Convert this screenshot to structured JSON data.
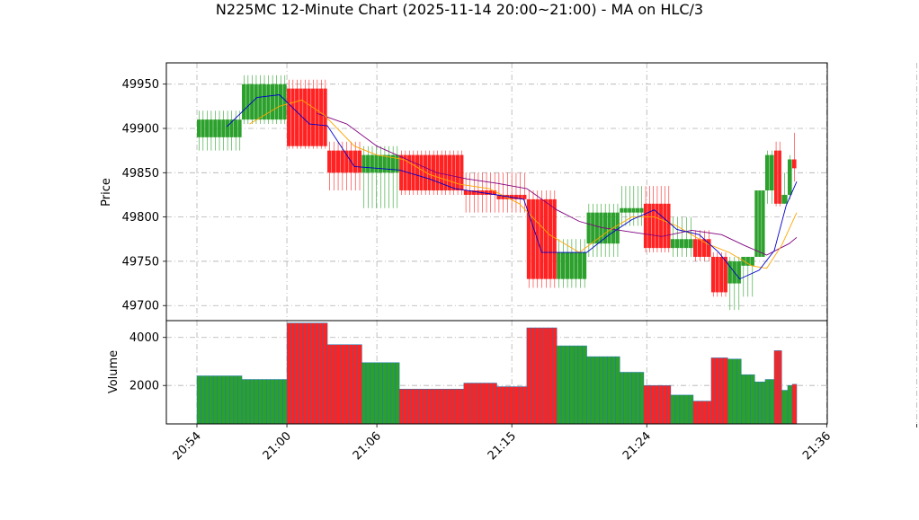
{
  "chart_data": {
    "type": "candlestick",
    "title": "N225MC 12-Minute Chart (2025-11-14 20:00~21:00) - MA on HLC/3",
    "ylabel_price": "Price",
    "ylabel_volume": "Volume",
    "price_ylim": [
      49683,
      49974
    ],
    "price_ticks": [
      49700,
      49750,
      49800,
      49850,
      49900,
      49950
    ],
    "volume_ylim": [
      400,
      4700
    ],
    "volume_ticks": [
      2000,
      4000
    ],
    "grid": true,
    "x_ticks": [
      {
        "t": 0,
        "label": "20:54"
      },
      {
        "t": 6,
        "label": "21:00"
      },
      {
        "t": 12,
        "label": "21:06"
      },
      {
        "t": 21,
        "label": "21:15"
      },
      {
        "t": 30,
        "label": "21:24"
      },
      {
        "t": 42,
        "label": "21:36"
      },
      {
        "t": 48,
        "label": ""
      }
    ],
    "colors": {
      "up": "#2ca02c",
      "down": "#ff2222",
      "ma_fast": "#0000cc",
      "ma_slow": "#ffa500",
      "ma_long": "#800080",
      "vol_edge": "#1f77b4"
    },
    "candles": [
      {
        "t0": 0,
        "t1": 3,
        "o": 49890,
        "h": 49920,
        "l": 49875,
        "c": 49910,
        "v": 2400
      },
      {
        "t0": 3,
        "t1": 6,
        "o": 49910,
        "h": 49960,
        "l": 49905,
        "c": 49950,
        "v": 2250
      },
      {
        "t0": 6,
        "t1": 8.7,
        "o": 49945,
        "h": 49955,
        "l": 49877,
        "c": 49880,
        "v": 4600
      },
      {
        "t0": 8.7,
        "t1": 11,
        "o": 49875,
        "h": 49885,
        "l": 49830,
        "c": 49850,
        "v": 3700
      },
      {
        "t0": 11,
        "t1": 13.5,
        "o": 49850,
        "h": 49880,
        "l": 49810,
        "c": 49870,
        "v": 2950
      },
      {
        "t0": 13.5,
        "t1": 17.8,
        "o": 49870,
        "h": 49875,
        "l": 49825,
        "c": 49830,
        "v": 1850
      },
      {
        "t0": 17.8,
        "t1": 20,
        "o": 49830,
        "h": 49850,
        "l": 49805,
        "c": 49825,
        "v": 2100
      },
      {
        "t0": 20,
        "t1": 22,
        "o": 49825,
        "h": 49850,
        "l": 49805,
        "c": 49820,
        "v": 1950
      },
      {
        "t0": 22,
        "t1": 24,
        "o": 49820,
        "h": 49830,
        "l": 49720,
        "c": 49730,
        "v": 4400
      },
      {
        "t0": 24,
        "t1": 26,
        "o": 49730,
        "h": 49775,
        "l": 49720,
        "c": 49760,
        "v": 3650
      },
      {
        "t0": 26,
        "t1": 28.2,
        "o": 49770,
        "h": 49815,
        "l": 49755,
        "c": 49805,
        "v": 3200
      },
      {
        "t0": 28.2,
        "t1": 29.8,
        "o": 49805,
        "h": 49835,
        "l": 49790,
        "c": 49810,
        "v": 2550
      },
      {
        "t0": 29.8,
        "t1": 31.6,
        "o": 49815,
        "h": 49835,
        "l": 49760,
        "c": 49765,
        "v": 2000
      },
      {
        "t0": 31.6,
        "t1": 33.1,
        "o": 49765,
        "h": 49800,
        "l": 49755,
        "c": 49775,
        "v": 1600
      },
      {
        "t0": 33.1,
        "t1": 34.3,
        "o": 49775,
        "h": 49785,
        "l": 49750,
        "c": 49755,
        "v": 1350
      },
      {
        "t0": 34.3,
        "t1": 35.4,
        "o": 49755,
        "h": 49760,
        "l": 49710,
        "c": 49715,
        "v": 3150
      },
      {
        "t0": 35.4,
        "t1": 36.3,
        "o": 49725,
        "h": 49755,
        "l": 49695,
        "c": 49750,
        "v": 3100
      },
      {
        "t0": 36.3,
        "t1": 37.2,
        "o": 49745,
        "h": 49755,
        "l": 49710,
        "c": 49755,
        "v": 2450
      },
      {
        "t0": 37.2,
        "t1": 37.9,
        "o": 49755,
        "h": 49830,
        "l": 49755,
        "c": 49830,
        "v": 2150
      },
      {
        "t0": 37.9,
        "t1": 38.5,
        "o": 49830,
        "h": 49875,
        "l": 49815,
        "c": 49870,
        "v": 2250
      },
      {
        "t0": 38.5,
        "t1": 39.0,
        "o": 49875,
        "h": 49885,
        "l": 49812,
        "c": 49815,
        "v": 3450
      },
      {
        "t0": 39.0,
        "t1": 39.4,
        "o": 49815,
        "h": 49850,
        "l": 49815,
        "c": 49825,
        "v": 1800
      },
      {
        "t0": 39.4,
        "t1": 39.7,
        "o": 49825,
        "h": 49870,
        "l": 49820,
        "c": 49865,
        "v": 2000
      },
      {
        "t0": 39.7,
        "t1": 40.0,
        "o": 49865,
        "h": 49895,
        "l": 49840,
        "c": 49855,
        "v": 2050
      }
    ],
    "ma_fast": [
      [
        2,
        49902
      ],
      [
        4,
        49935
      ],
      [
        5.5,
        49938
      ],
      [
        7.5,
        49905
      ],
      [
        8.7,
        49903
      ],
      [
        10.5,
        49857
      ],
      [
        13.5,
        49853
      ],
      [
        15.5,
        49843
      ],
      [
        17.2,
        49832
      ],
      [
        20,
        49825
      ],
      [
        21.8,
        49820
      ],
      [
        23,
        49760
      ],
      [
        26,
        49760
      ],
      [
        27.5,
        49780
      ],
      [
        29,
        49797
      ],
      [
        30.5,
        49808
      ],
      [
        32,
        49786
      ],
      [
        33.5,
        49780
      ],
      [
        34.8,
        49760
      ],
      [
        36.2,
        49730
      ],
      [
        37.5,
        49740
      ],
      [
        38.5,
        49762
      ],
      [
        39.3,
        49813
      ],
      [
        40,
        49840
      ]
    ],
    "ma_slow": [
      [
        3.5,
        49905
      ],
      [
        5.5,
        49925
      ],
      [
        7,
        49932
      ],
      [
        8.5,
        49915
      ],
      [
        10.5,
        49880
      ],
      [
        12,
        49870
      ],
      [
        13.8,
        49865
      ],
      [
        15.5,
        49848
      ],
      [
        17.5,
        49837
      ],
      [
        19.5,
        49832
      ],
      [
        21.5,
        49815
      ],
      [
        23.5,
        49780
      ],
      [
        25.5,
        49760
      ],
      [
        27.5,
        49785
      ],
      [
        29,
        49800
      ],
      [
        30.5,
        49800
      ],
      [
        32,
        49790
      ],
      [
        34,
        49770
      ],
      [
        35.5,
        49760
      ],
      [
        37,
        49745
      ],
      [
        38,
        49742
      ],
      [
        39,
        49768
      ],
      [
        40,
        49805
      ]
    ],
    "ma_long": [
      [
        8,
        49917
      ],
      [
        10,
        49905
      ],
      [
        12,
        49880
      ],
      [
        14,
        49865
      ],
      [
        16,
        49850
      ],
      [
        18,
        49843
      ],
      [
        20,
        49838
      ],
      [
        22,
        49832
      ],
      [
        24,
        49808
      ],
      [
        25.5,
        49795
      ],
      [
        27,
        49788
      ],
      [
        29,
        49783
      ],
      [
        31,
        49778
      ],
      [
        33,
        49785
      ],
      [
        35,
        49780
      ],
      [
        36.5,
        49768
      ],
      [
        38,
        49757
      ],
      [
        39.5,
        49770
      ],
      [
        40,
        49777
      ]
    ]
  }
}
